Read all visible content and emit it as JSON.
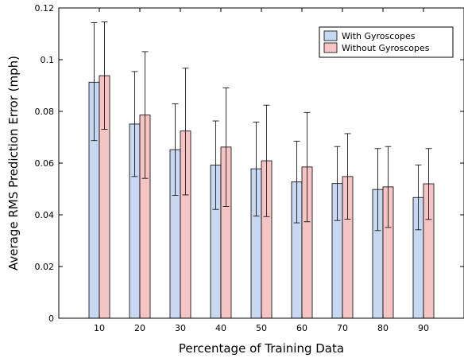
{
  "chart_data": {
    "type": "bar",
    "title": "",
    "xlabel": "Percentage of Training Data",
    "ylabel": "Average RMS Prediction Error (mph)",
    "categories": [
      "10",
      "20",
      "30",
      "40",
      "50",
      "60",
      "70",
      "80",
      "90"
    ],
    "ylim": [
      0,
      0.12
    ],
    "yticks": [
      "0",
      "0.02",
      "0.04",
      "0.06",
      "0.08",
      "0.1",
      "0.12"
    ],
    "grid": false,
    "legend_position": "top-right",
    "series": [
      {
        "name": "With Gyroscopes",
        "color": "#c8d8f0",
        "values": [
          0.0913,
          0.0751,
          0.0652,
          0.0592,
          0.0578,
          0.0527,
          0.0521,
          0.0498,
          0.0467
        ],
        "error_low": [
          0.0687,
          0.0548,
          0.0475,
          0.0421,
          0.0395,
          0.0369,
          0.0378,
          0.0339,
          0.0342
        ],
        "error_high": [
          0.1143,
          0.0954,
          0.0829,
          0.0763,
          0.0759,
          0.0685,
          0.0664,
          0.0656,
          0.0593
        ]
      },
      {
        "name": "Without Gyroscopes",
        "color": "#f5c4c4",
        "values": [
          0.0938,
          0.0786,
          0.0724,
          0.0662,
          0.0609,
          0.0585,
          0.0548,
          0.0508,
          0.052
        ],
        "error_low": [
          0.0731,
          0.0541,
          0.0477,
          0.0432,
          0.0393,
          0.0373,
          0.0383,
          0.0351,
          0.0382
        ],
        "error_high": [
          0.1146,
          0.1031,
          0.0967,
          0.0891,
          0.0824,
          0.0796,
          0.0714,
          0.0664,
          0.0656
        ]
      }
    ]
  }
}
